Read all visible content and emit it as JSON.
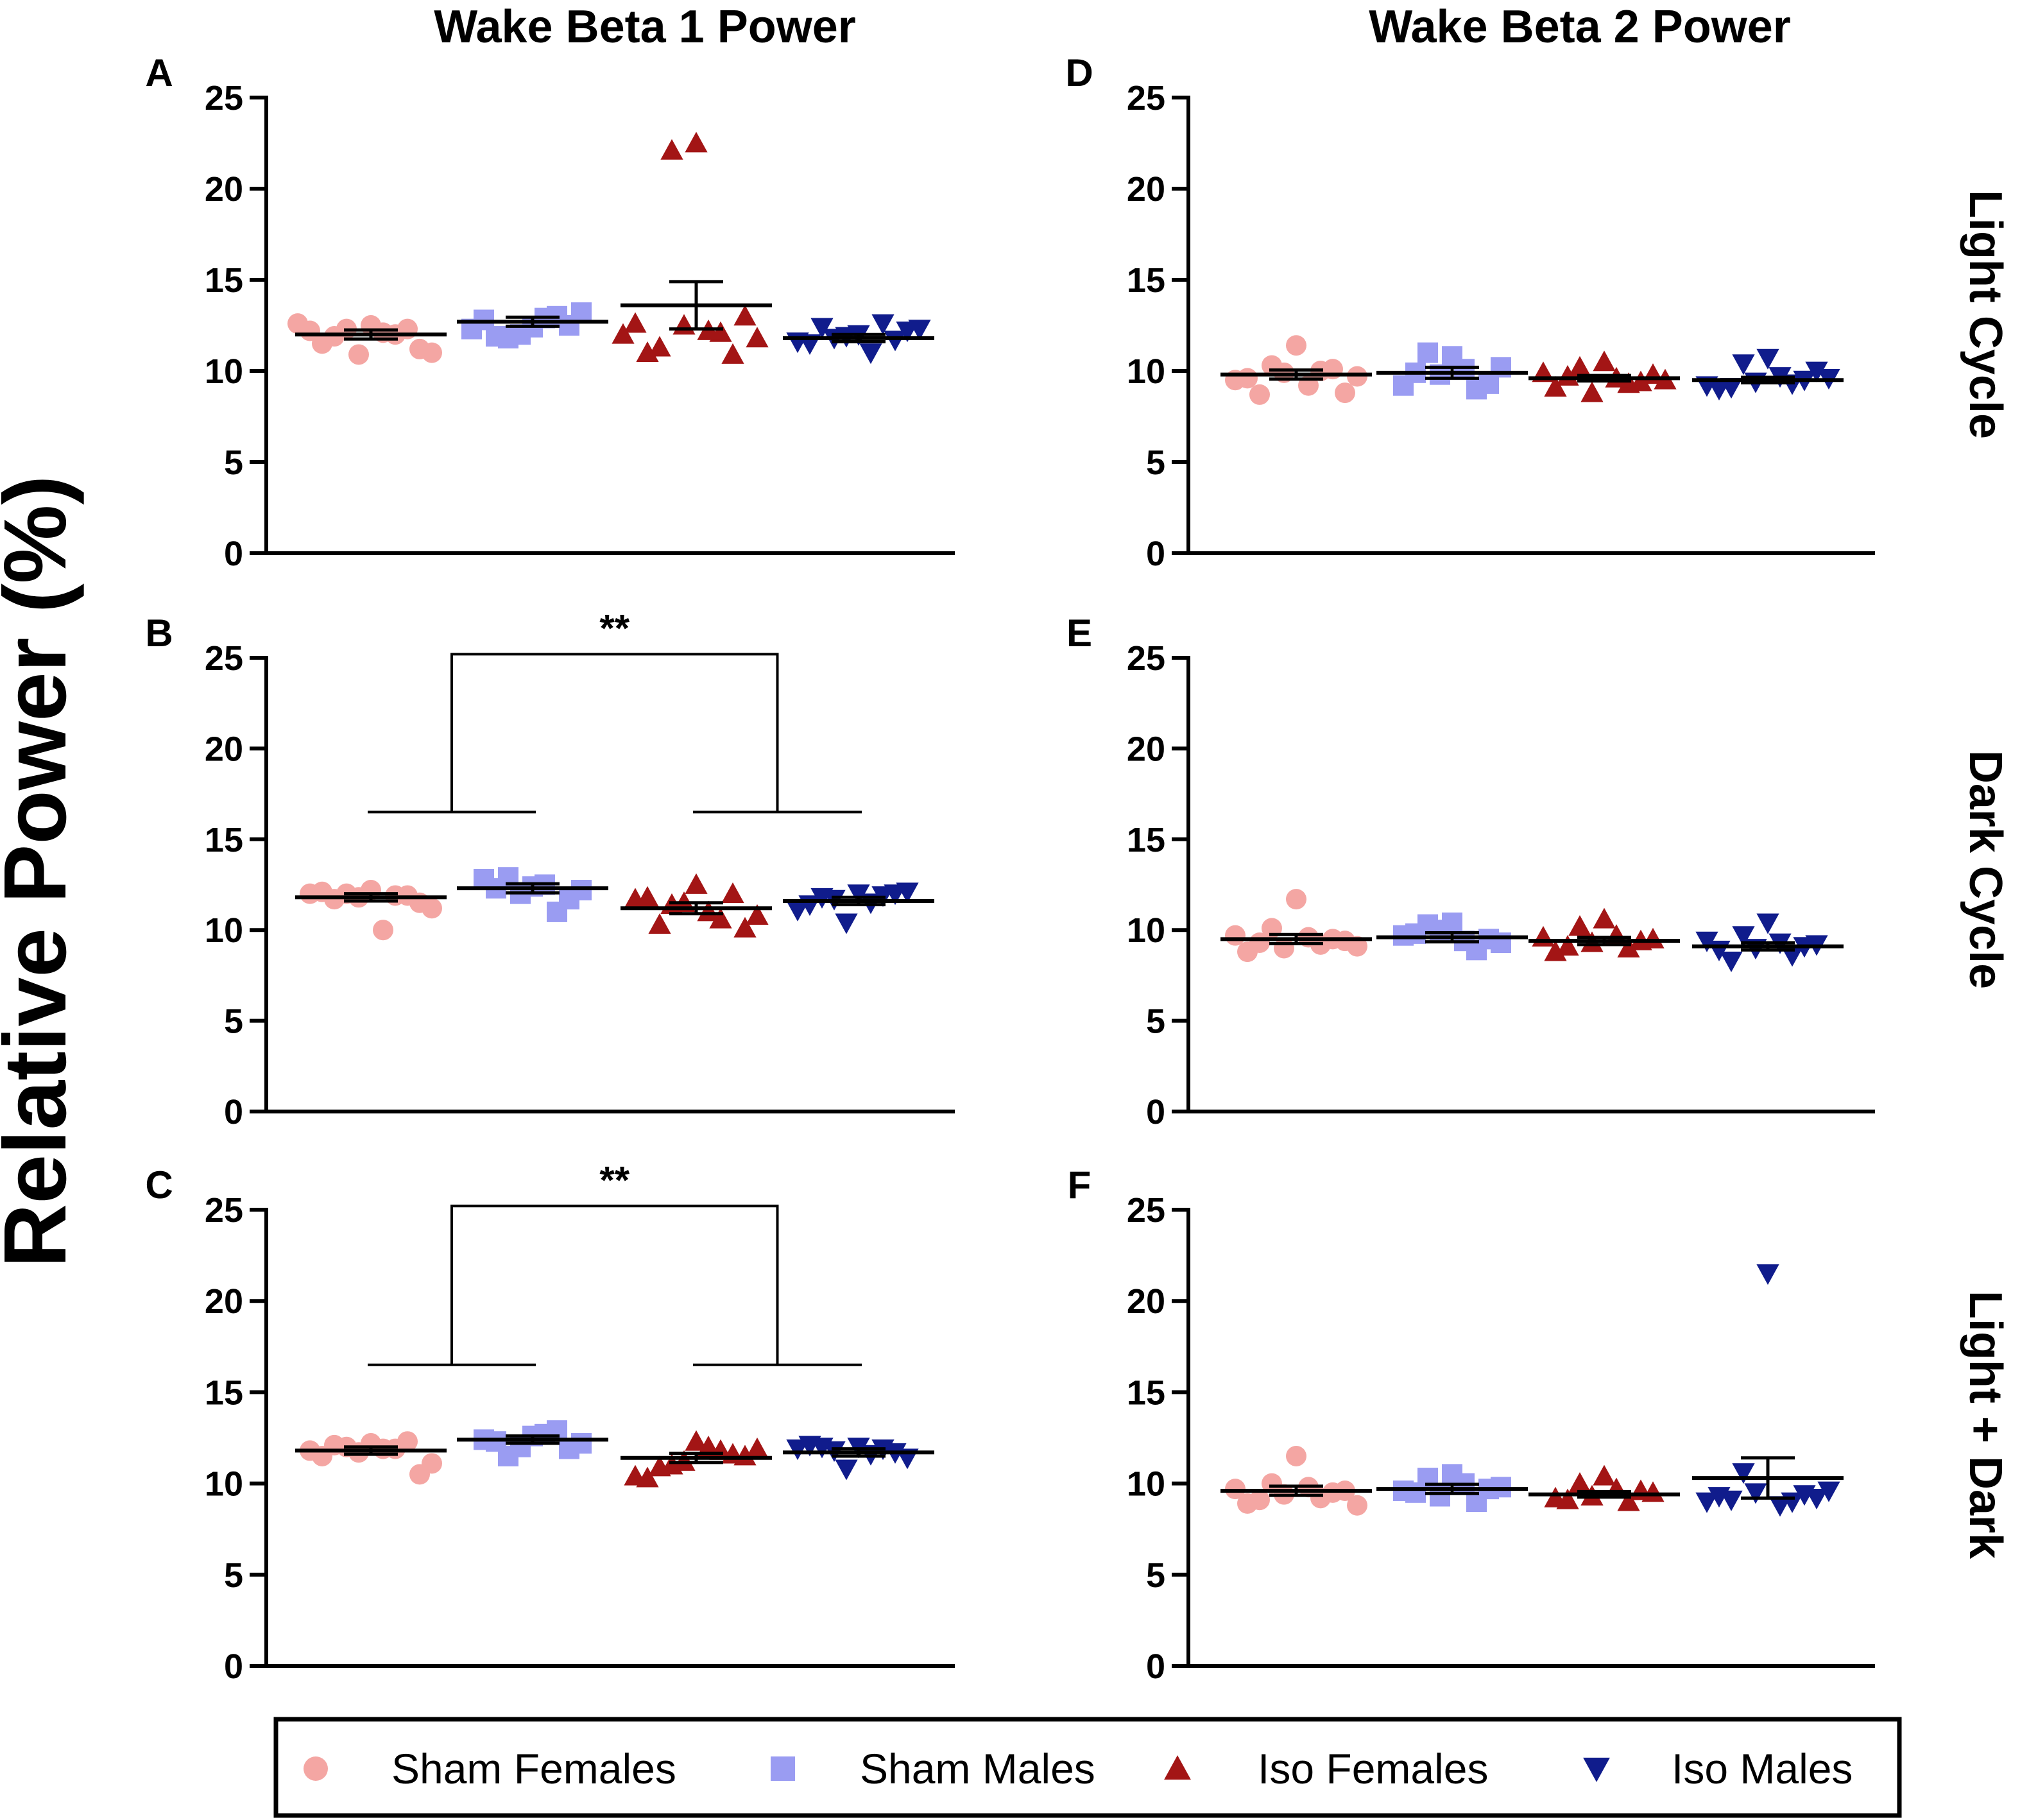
{
  "y_axis_title": "Relative Power (%)",
  "columns": [
    "Wake Beta 1 Power",
    "Wake Beta 2 Power"
  ],
  "rows": [
    "Light Cycle",
    "Dark Cycle",
    "Light + Dark"
  ],
  "colors": {
    "Sham Females": "#f4a6a3",
    "Sham Males": "#9a9cf2",
    "Iso Females": "#a31515",
    "Iso Males": "#101c8c"
  },
  "legend": [
    {
      "label": "Sham Females",
      "marker": "circle"
    },
    {
      "label": "Sham Males",
      "marker": "square"
    },
    {
      "label": "Iso Females",
      "marker": "triangle-up"
    },
    {
      "label": "Iso Males",
      "marker": "triangle-down"
    }
  ],
  "chart_data": [
    {
      "panel": "A",
      "type": "scatter",
      "column": "Wake Beta 1 Power",
      "row": "Light Cycle",
      "categories": [
        "Sham Females",
        "Sham Males",
        "Iso Females",
        "Iso Males"
      ],
      "ylim": [
        0,
        25
      ],
      "yticks": [
        "0",
        "5",
        "10",
        "15",
        "20",
        "25"
      ],
      "series": [
        {
          "name": "Sham Females",
          "mean": 12.0,
          "sem": 0.25,
          "values": [
            12.5,
            12.3,
            12.0,
            11.5,
            11.2,
            10.9,
            12.1,
            11.9,
            12.3,
            12.2,
            11.0,
            12.6
          ]
        },
        {
          "name": "Sham Males",
          "mean": 12.7,
          "sem": 0.25,
          "values": [
            12.4,
            11.8,
            13.0,
            12.8,
            13.2,
            12.0,
            12.9,
            11.9,
            12.5,
            12.3
          ]
        },
        {
          "name": "Iso Females",
          "mean": 13.6,
          "sem": 1.3,
          "values": [
            22.5,
            22.1,
            12.1,
            11.0,
            13.0,
            12.5,
            12.2,
            11.3,
            10.9,
            12.6,
            11.8,
            12.0
          ]
        },
        {
          "name": "Iso Males",
          "mean": 11.8,
          "sem": 0.2,
          "values": [
            12.0,
            11.8,
            12.6,
            11.5,
            12.2,
            11.9,
            11.0,
            12.4,
            11.7,
            11.6,
            12.3
          ]
        }
      ],
      "significance": null
    },
    {
      "panel": "B",
      "type": "scatter",
      "column": "Wake Beta 1 Power",
      "row": "Dark Cycle",
      "categories": [
        "Sham Females",
        "Sham Males",
        "Iso Females",
        "Iso Males"
      ],
      "ylim": [
        0,
        25
      ],
      "yticks": [
        "0",
        "5",
        "10",
        "15",
        "20",
        "25"
      ],
      "series": [
        {
          "name": "Sham Females",
          "mean": 11.8,
          "sem": 0.2,
          "values": [
            12.2,
            12.0,
            11.9,
            12.1,
            11.5,
            11.8,
            10.0,
            11.7,
            11.9,
            12.0,
            11.2
          ]
        },
        {
          "name": "Sham Males",
          "mean": 12.3,
          "sem": 0.25,
          "values": [
            12.4,
            12.9,
            11.0,
            12.8,
            12.2,
            12.0,
            12.5,
            12.3,
            11.7
          ]
        },
        {
          "name": "Iso Females",
          "mean": 11.2,
          "sem": 0.3,
          "values": [
            12.5,
            11.4,
            10.6,
            11.8,
            10.1,
            11.5,
            11.0,
            10.3,
            12.0,
            11.7,
            10.8
          ]
        },
        {
          "name": "Iso Males",
          "mean": 11.6,
          "sem": 0.2,
          "values": [
            12.0,
            11.7,
            11.9,
            11.4,
            12.1,
            10.4,
            11.5,
            11.8,
            12.0,
            11.1
          ]
        }
      ],
      "significance": {
        "text": "**",
        "left_groups": [
          "Sham Females",
          "Sham Males"
        ],
        "right_groups": [
          "Iso Females",
          "Iso Males"
        ]
      }
    },
    {
      "panel": "C",
      "type": "scatter",
      "column": "Wake Beta 1 Power",
      "row": "Light + Dark",
      "categories": [
        "Sham Females",
        "Sham Males",
        "Iso Females",
        "Iso Males"
      ],
      "ylim": [
        0,
        25
      ],
      "yticks": [
        "0",
        "5",
        "10",
        "15",
        "20",
        "25"
      ],
      "series": [
        {
          "name": "Sham Females",
          "mean": 11.8,
          "sem": 0.2,
          "values": [
            12.2,
            12.0,
            11.9,
            11.5,
            10.5,
            11.7,
            11.9,
            12.1,
            12.3,
            11.8,
            11.1
          ]
        },
        {
          "name": "Sham Males",
          "mean": 12.4,
          "sem": 0.2,
          "values": [
            12.6,
            11.5,
            12.9,
            12.4,
            12.2,
            12.0,
            12.7,
            12.3,
            11.9
          ]
        },
        {
          "name": "Iso Females",
          "mean": 11.4,
          "sem": 0.25,
          "values": [
            12.3,
            11.0,
            11.8,
            10.3,
            11.5,
            11.2,
            12.0,
            10.9,
            11.6,
            10.4,
            11.9
          ]
        },
        {
          "name": "Iso Males",
          "mean": 11.7,
          "sem": 0.2,
          "values": [
            12.0,
            11.8,
            11.9,
            12.1,
            11.4,
            10.8,
            11.6,
            12.0,
            11.7,
            11.9
          ]
        }
      ],
      "significance": {
        "text": "**",
        "left_groups": [
          "Sham Females",
          "Sham Males"
        ],
        "right_groups": [
          "Iso Females",
          "Iso Males"
        ]
      }
    },
    {
      "panel": "D",
      "type": "scatter",
      "column": "Wake Beta 2 Power",
      "row": "Light Cycle",
      "categories": [
        "Sham Females",
        "Sham Males",
        "Iso Females",
        "Iso Males"
      ],
      "ylim": [
        0,
        25
      ],
      "yticks": [
        "0",
        "5",
        "10",
        "15",
        "20",
        "25"
      ],
      "series": [
        {
          "name": "Sham Females",
          "mean": 9.8,
          "sem": 0.25,
          "values": [
            11.4,
            10.3,
            10.0,
            9.6,
            8.8,
            9.9,
            9.2,
            8.7,
            10.1,
            9.5,
            9.7
          ]
        },
        {
          "name": "Sham Males",
          "mean": 9.9,
          "sem": 0.3,
          "values": [
            10.8,
            11.0,
            9.0,
            9.2,
            10.2,
            9.8,
            10.1,
            9.9,
            9.3
          ]
        },
        {
          "name": "Iso Females",
          "mean": 9.6,
          "sem": 0.15,
          "values": [
            10.5,
            10.2,
            9.3,
            9.1,
            9.8,
            8.8,
            9.6,
            9.7,
            9.4,
            9.9,
            9.5
          ]
        },
        {
          "name": "Iso Males",
          "mean": 9.5,
          "sem": 0.15,
          "values": [
            10.7,
            10.4,
            9.3,
            9.0,
            10.0,
            9.4,
            9.7,
            9.1,
            9.5,
            9.2,
            9.6
          ]
        }
      ],
      "significance": null
    },
    {
      "panel": "E",
      "type": "scatter",
      "column": "Wake Beta 2 Power",
      "row": "Dark Cycle",
      "categories": [
        "Sham Females",
        "Sham Males",
        "Iso Females",
        "Iso Males"
      ],
      "ylim": [
        0,
        25
      ],
      "yticks": [
        "0",
        "5",
        "10",
        "15",
        "20",
        "25"
      ],
      "series": [
        {
          "name": "Sham Females",
          "mean": 9.5,
          "sem": 0.25,
          "values": [
            11.7,
            10.1,
            9.2,
            8.8,
            9.4,
            9.0,
            9.6,
            9.3,
            9.5,
            9.7,
            9.1
          ]
        },
        {
          "name": "Sham Males",
          "mean": 9.6,
          "sem": 0.25,
          "values": [
            10.4,
            10.3,
            8.9,
            9.7,
            9.3,
            10.0,
            9.4,
            9.8,
            9.5
          ]
        },
        {
          "name": "Iso Females",
          "mean": 9.4,
          "sem": 0.2,
          "values": [
            10.6,
            10.2,
            9.0,
            8.8,
            9.5,
            9.3,
            9.7,
            9.1,
            9.4,
            9.6
          ]
        },
        {
          "name": "Iso Males",
          "mean": 9.1,
          "sem": 0.2,
          "values": [
            10.4,
            9.7,
            8.6,
            8.9,
            9.2,
            9.0,
            9.3,
            8.3,
            9.1,
            9.4
          ]
        }
      ],
      "significance": null
    },
    {
      "panel": "F",
      "type": "scatter",
      "column": "Wake Beta 2 Power",
      "row": "Light + Dark",
      "categories": [
        "Sham Females",
        "Sham Males",
        "Iso Females",
        "Iso Males"
      ],
      "ylim": [
        0,
        25
      ],
      "yticks": [
        "0",
        "5",
        "10",
        "15",
        "20",
        "25"
      ],
      "series": [
        {
          "name": "Sham Females",
          "mean": 9.6,
          "sem": 0.25,
          "values": [
            11.5,
            10.0,
            9.2,
            8.9,
            9.6,
            9.4,
            9.8,
            9.1,
            9.5,
            9.7,
            8.8
          ]
        },
        {
          "name": "Sham Males",
          "mean": 9.7,
          "sem": 0.25,
          "values": [
            10.5,
            10.3,
            9.0,
            9.6,
            9.8,
            9.3,
            10.0,
            9.5,
            9.7
          ]
        },
        {
          "name": "Iso Females",
          "mean": 9.4,
          "sem": 0.15,
          "values": [
            10.4,
            10.0,
            9.0,
            9.2,
            9.5,
            9.3,
            9.7,
            9.1,
            9.6
          ]
        },
        {
          "name": "Iso Males",
          "mean": 10.3,
          "sem": 1.1,
          "values": [
            21.5,
            10.6,
            9.0,
            9.3,
            9.2,
            9.5,
            8.8,
            9.1,
            9.4,
            9.0,
            9.6
          ]
        }
      ],
      "significance": null
    }
  ]
}
